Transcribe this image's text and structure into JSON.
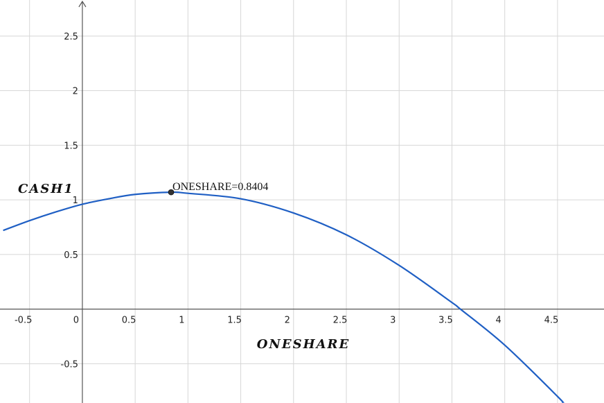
{
  "chart_data": {
    "type": "line",
    "xlabel": "ONESHARE",
    "ylabel": "CASH1",
    "xlim": [
      -0.78,
      4.94
    ],
    "ylim": [
      -0.86,
      2.83
    ],
    "grid": true,
    "x_ticks": [
      -0.5,
      0,
      0.5,
      1,
      1.5,
      2,
      2.5,
      3,
      3.5,
      4,
      4.5
    ],
    "x_tick_labels": [
      "-0.5",
      "0",
      "0.5",
      "1",
      "1.5",
      "2",
      "2.5",
      "3",
      "3.5",
      "4",
      "4.5"
    ],
    "y_ticks": [
      -0.5,
      0.5,
      1,
      1.5,
      2,
      2.5
    ],
    "y_tick_labels": [
      "-0.5",
      "0.5",
      "1",
      "1.5",
      "2",
      "2.5"
    ],
    "series": [
      {
        "color": "#1f5fc4",
        "x": [
          -0.75,
          -0.5,
          -0.25,
          0,
          0.25,
          0.5,
          0.84,
          1.0,
          1.5,
          2.0,
          2.5,
          3.0,
          3.5,
          3.58,
          4.0,
          4.5,
          4.55
        ],
        "y": [
          0.72,
          0.81,
          0.89,
          0.96,
          1.01,
          1.05,
          1.07,
          1.06,
          1.01,
          0.88,
          0.68,
          0.4,
          0.06,
          0.0,
          -0.33,
          -0.8,
          -0.86
        ]
      }
    ],
    "annotations": [
      {
        "x": 0.8404,
        "y": 1.07,
        "label": "ONESHARE=0.8404",
        "color": "#333333"
      }
    ]
  }
}
